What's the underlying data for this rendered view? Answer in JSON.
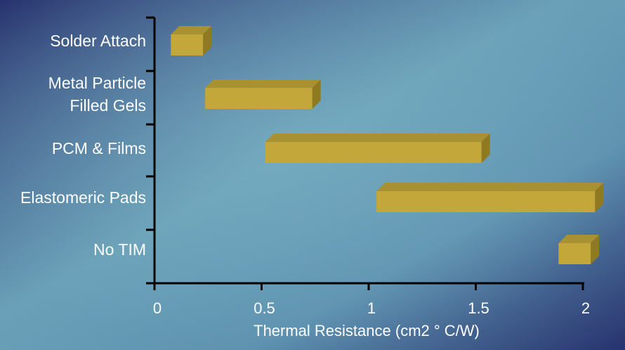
{
  "chart_data": {
    "type": "bar",
    "orientation": "horizontal",
    "style": "floating-range-3d",
    "categories": [
      "Solder Attach",
      "Metal Particle Filled Gels",
      "PCM & Films",
      "Elastomeric Pads",
      "No TIM"
    ],
    "category_lines": [
      [
        "Solder Attach"
      ],
      [
        "Metal Particle",
        "Filled Gels"
      ],
      [
        "PCM & Films"
      ],
      [
        "Elastomeric Pads"
      ],
      [
        "No TIM"
      ]
    ],
    "ranges": [
      [
        0.07,
        0.22
      ],
      [
        0.23,
        0.73
      ],
      [
        0.51,
        1.52
      ],
      [
        1.03,
        2.05
      ],
      [
        1.88,
        2.03
      ]
    ],
    "xlim": [
      0,
      2
    ],
    "xticks": [
      "0",
      "0.5",
      "1",
      "1.5",
      "2"
    ],
    "xtick_values": [
      0,
      0.5,
      1,
      1.5,
      2
    ],
    "xlabel": "Thermal Resistance (cm2 ° C/W)",
    "ylabel": "",
    "title": "",
    "grid": false,
    "colors": {
      "bar_front": "#c3a73a",
      "bar_top": "#a89132",
      "bar_side": "#8f7a22",
      "axis": "#000000",
      "text": "#ffffff",
      "background_dark": "#27326e",
      "background_light": "#6aa1b8"
    }
  }
}
